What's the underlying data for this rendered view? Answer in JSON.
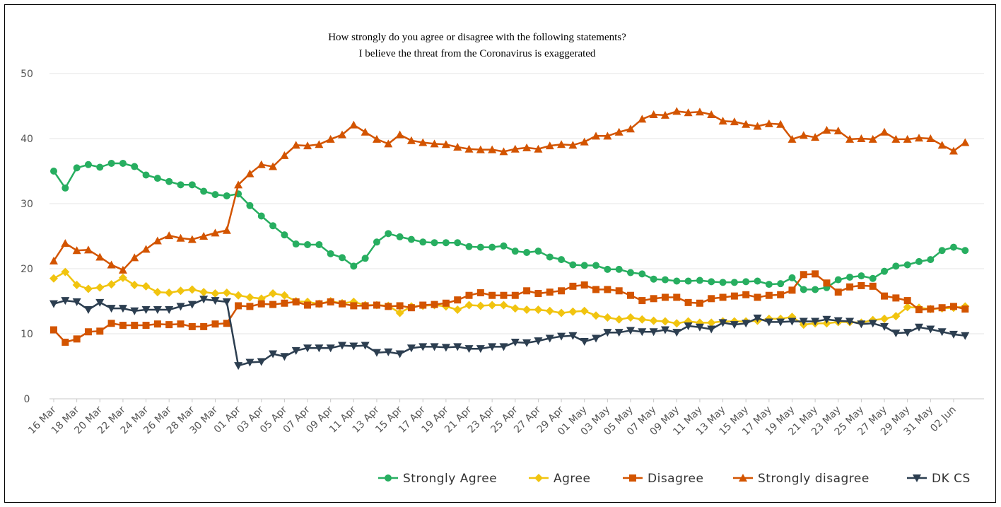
{
  "chart_data": {
    "type": "line",
    "title": "How strongly do you agree or disagree with the following statements?",
    "subtitle": "I believe the threat from the Coronavirus is exaggerated",
    "xlabel": "",
    "ylabel": "",
    "ylim": [
      0,
      50
    ],
    "yticks": [
      0,
      10,
      20,
      30,
      40,
      50
    ],
    "grid": true,
    "legend_position": "bottom-right",
    "x": [
      "16 Mar",
      "17 Mar",
      "18 Mar",
      "19 Mar",
      "20 Mar",
      "21 Mar",
      "22 Mar",
      "23 Mar",
      "24 Mar",
      "25 Mar",
      "26 Mar",
      "27 Mar",
      "28 Mar",
      "29 Mar",
      "30 Mar",
      "31 Mar",
      "01 Apr",
      "02 Apr",
      "03 Apr",
      "04 Apr",
      "05 Apr",
      "06 Apr",
      "07 Apr",
      "08 Apr",
      "09 Apr",
      "10 Apr",
      "11 Apr",
      "12 Apr",
      "13 Apr",
      "14 Apr",
      "15 Apr",
      "16 Apr",
      "17 Apr",
      "18 Apr",
      "19 Apr",
      "20 Apr",
      "21 Apr",
      "22 Apr",
      "23 Apr",
      "24 Apr",
      "25 Apr",
      "26 Apr",
      "27 Apr",
      "28 Apr",
      "29 Apr",
      "30 Apr",
      "01 May",
      "02 May",
      "03 May",
      "04 May",
      "05 May",
      "06 May",
      "07 May",
      "08 May",
      "09 May",
      "10 May",
      "11 May",
      "12 May",
      "13 May",
      "14 May",
      "15 May",
      "16 May",
      "17 May",
      "18 May",
      "19 May",
      "20 May",
      "21 May",
      "22 May",
      "23 May",
      "24 May",
      "25 May",
      "26 May",
      "27 May",
      "28 May",
      "29 May",
      "30 May",
      "31 May",
      "01 Jun",
      "02 Jun",
      "03 Jun"
    ],
    "xticks": [
      "16 Mar",
      "18 Mar",
      "20 Mar",
      "22 Mar",
      "24 Mar",
      "26 Mar",
      "28 Mar",
      "30 Mar",
      "01 Apr",
      "03 Apr",
      "05 Apr",
      "07 Apr",
      "09 Apr",
      "11 Apr",
      "13 Apr",
      "15 Apr",
      "17 Apr",
      "19 Apr",
      "21 Apr",
      "23 Apr",
      "25 Apr",
      "27 Apr",
      "29 Apr",
      "01 May",
      "03 May",
      "05 May",
      "07 May",
      "09 May",
      "11 May",
      "13 May",
      "15 May",
      "17 May",
      "19 May",
      "21 May",
      "23 May",
      "25 May",
      "27 May",
      "29 May",
      "31 May",
      "02 Jun"
    ],
    "series": [
      {
        "name": "Strongly Agree",
        "color": "#27ae60",
        "marker": "circle",
        "values": [
          35.0,
          32.4,
          35.5,
          36.0,
          35.6,
          36.2,
          36.2,
          35.7,
          34.4,
          33.9,
          33.4,
          32.9,
          32.9,
          31.9,
          31.4,
          31.2,
          31.5,
          29.7,
          28.1,
          26.6,
          25.2,
          23.8,
          23.7,
          23.7,
          22.3,
          21.7,
          20.4,
          21.6,
          24.1,
          25.4,
          24.9,
          24.5,
          24.1,
          24.0,
          24.0,
          24.0,
          23.4,
          23.3,
          23.3,
          23.5,
          22.7,
          22.5,
          22.7,
          21.8,
          21.4,
          20.6,
          20.5,
          20.5,
          19.9,
          19.9,
          19.4,
          19.2,
          18.4,
          18.3,
          18.1,
          18.1,
          18.2,
          18.0,
          17.9,
          17.9,
          18.0,
          18.1,
          17.6,
          17.7,
          18.6,
          16.8,
          16.8,
          17.1,
          18.3,
          18.7,
          18.9,
          18.5,
          19.6,
          20.4,
          20.6,
          21.1,
          21.4,
          22.8,
          23.3,
          22.8
        ]
      },
      {
        "name": "Agree",
        "color": "#f1c40f",
        "marker": "diamond",
        "values": [
          18.5,
          19.5,
          17.5,
          16.9,
          17.1,
          17.6,
          18.6,
          17.5,
          17.3,
          16.4,
          16.3,
          16.6,
          16.8,
          16.4,
          16.2,
          16.3,
          15.9,
          15.6,
          15.4,
          16.2,
          15.9,
          15.0,
          14.9,
          14.6,
          15.0,
          14.7,
          14.9,
          14.4,
          14.4,
          14.3,
          13.2,
          14.2,
          14.3,
          14.4,
          14.2,
          13.7,
          14.4,
          14.3,
          14.4,
          14.4,
          13.9,
          13.7,
          13.7,
          13.5,
          13.2,
          13.4,
          13.5,
          12.8,
          12.5,
          12.2,
          12.5,
          12.2,
          12.0,
          11.9,
          11.6,
          11.9,
          11.7,
          11.7,
          11.9,
          11.9,
          11.9,
          12.0,
          12.3,
          12.3,
          12.6,
          11.4,
          11.6,
          11.6,
          11.8,
          11.8,
          11.7,
          12.1,
          12.3,
          12.7,
          14.1,
          14.0,
          13.8,
          13.9,
          14.0,
          14.2
        ]
      },
      {
        "name": "Disagree",
        "color": "#d35400",
        "marker": "square",
        "values": [
          10.6,
          8.7,
          9.2,
          10.3,
          10.4,
          11.6,
          11.3,
          11.3,
          11.3,
          11.5,
          11.4,
          11.5,
          11.1,
          11.1,
          11.5,
          11.6,
          14.3,
          14.2,
          14.6,
          14.5,
          14.7,
          14.9,
          14.4,
          14.6,
          14.9,
          14.6,
          14.3,
          14.3,
          14.4,
          14.2,
          14.3,
          14.0,
          14.4,
          14.5,
          14.7,
          15.2,
          15.9,
          16.3,
          15.9,
          15.9,
          15.9,
          16.6,
          16.2,
          16.4,
          16.6,
          17.3,
          17.5,
          16.8,
          16.8,
          16.6,
          15.9,
          15.1,
          15.4,
          15.6,
          15.6,
          14.8,
          14.7,
          15.4,
          15.6,
          15.8,
          16.0,
          15.6,
          15.9,
          16.0,
          16.7,
          19.1,
          19.2,
          17.8,
          16.4,
          17.2,
          17.4,
          17.3,
          15.8,
          15.5,
          15.1,
          13.7,
          13.8,
          14.0,
          14.2,
          13.8
        ]
      },
      {
        "name": "Strongly disagree",
        "color": "#d35400",
        "marker": "triangle",
        "values": [
          21.2,
          23.9,
          22.8,
          22.9,
          21.8,
          20.6,
          19.8,
          21.7,
          23.0,
          24.3,
          25.1,
          24.7,
          24.5,
          25.0,
          25.5,
          25.9,
          32.9,
          34.6,
          36.0,
          35.7,
          37.4,
          39.0,
          38.9,
          39.1,
          39.9,
          40.6,
          42.1,
          41.0,
          39.9,
          39.2,
          40.6,
          39.7,
          39.4,
          39.2,
          39.1,
          38.7,
          38.4,
          38.3,
          38.3,
          38.0,
          38.4,
          38.6,
          38.4,
          38.9,
          39.1,
          39.0,
          39.5,
          40.4,
          40.4,
          41.0,
          41.5,
          43.0,
          43.7,
          43.6,
          44.2,
          44.0,
          44.1,
          43.7,
          42.7,
          42.6,
          42.2,
          41.9,
          42.3,
          42.2,
          39.9,
          40.5,
          40.2,
          41.3,
          41.2,
          39.9,
          40.0,
          39.9,
          41.0,
          39.9,
          39.9,
          40.1,
          40.0,
          39.0,
          38.1,
          39.4
        ]
      },
      {
        "name": "DK CS",
        "color": "#2c3e50",
        "marker": "triangle-down",
        "values": [
          14.6,
          15.1,
          14.9,
          13.7,
          14.8,
          13.9,
          13.9,
          13.5,
          13.7,
          13.7,
          13.7,
          14.2,
          14.5,
          15.3,
          15.1,
          14.9,
          5.1,
          5.6,
          5.7,
          6.9,
          6.5,
          7.4,
          7.8,
          7.8,
          7.8,
          8.2,
          8.1,
          8.2,
          7.1,
          7.2,
          6.9,
          7.8,
          8.0,
          8.0,
          7.9,
          8.0,
          7.7,
          7.7,
          8.0,
          8.0,
          8.7,
          8.6,
          8.9,
          9.3,
          9.6,
          9.7,
          8.8,
          9.3,
          10.2,
          10.2,
          10.5,
          10.3,
          10.3,
          10.6,
          10.2,
          11.2,
          11.0,
          10.7,
          11.7,
          11.4,
          11.6,
          12.4,
          11.8,
          11.8,
          11.9,
          11.9,
          11.9,
          12.2,
          12.0,
          11.9,
          11.5,
          11.6,
          11.1,
          10.1,
          10.2,
          11.0,
          10.7,
          10.3,
          9.9,
          9.7
        ]
      }
    ]
  }
}
